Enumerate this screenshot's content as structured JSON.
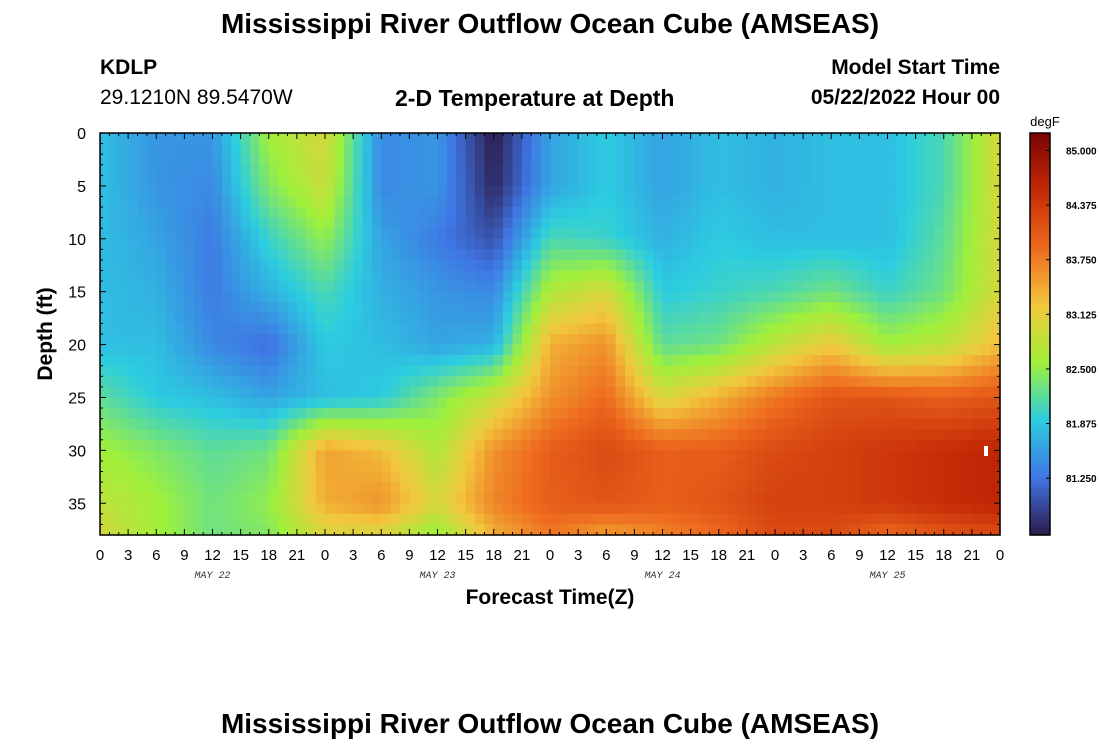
{
  "header": {
    "title": "Mississippi River Outflow Ocean Cube (AMSEAS)",
    "station": "KDLP",
    "coords": "29.1210N  89.5470W",
    "plot_title": "2-D Temperature at Depth",
    "start_label": "Model Start Time",
    "start_time": "05/22/2022 Hour 00"
  },
  "footer": {
    "title": "Mississippi River Outflow Ocean Cube (AMSEAS)"
  },
  "chart_data": {
    "type": "heatmap",
    "title": "2-D Temperature at Depth",
    "xlabel": "Forecast Time(Z)",
    "ylabel": "Depth (ft)",
    "colorbar_unit": "degF",
    "x_tick_labels": [
      "0",
      "3",
      "6",
      "9",
      "12",
      "15",
      "18",
      "21",
      "0",
      "3",
      "6",
      "9",
      "12",
      "15",
      "18",
      "21",
      "0",
      "3",
      "6",
      "9",
      "12",
      "15",
      "18",
      "21",
      "0",
      "3",
      "6",
      "9",
      "12",
      "15",
      "18",
      "21",
      "0"
    ],
    "date_labels": [
      "MAY 22",
      "MAY 23",
      "MAY 24",
      "MAY 25"
    ],
    "y_ticks": [
      0,
      5,
      10,
      15,
      20,
      25,
      30,
      35
    ],
    "ylim": [
      0,
      38
    ],
    "xlim_hours": [
      0,
      96
    ],
    "colorbar_ticks": [
      "85.000",
      "84.375",
      "83.750",
      "83.125",
      "82.500",
      "81.875",
      "81.250"
    ],
    "colorbar_range": [
      80.6,
      85.2
    ],
    "colors": {
      "low": "#2c1a4a",
      "blue": "#3f76e4",
      "cyan": "#2ccde0",
      "green": "#9ff03b",
      "yellow": "#f2c73d",
      "orange": "#ee6a1e",
      "red": "#c42906",
      "high": "#7a0403"
    },
    "grid_depths": [
      0,
      5,
      10,
      15,
      20,
      25,
      30,
      35,
      38
    ],
    "grid_hours": [
      0,
      6,
      12,
      18,
      24,
      30,
      36,
      42,
      48,
      54,
      60,
      66,
      72,
      78,
      84,
      90,
      96
    ],
    "values": [
      [
        81.8,
        81.5,
        81.5,
        82.6,
        83.0,
        81.4,
        81.5,
        80.6,
        81.6,
        81.9,
        81.6,
        81.8,
        81.7,
        81.8,
        81.8,
        82.1,
        83.0
      ],
      [
        81.8,
        81.5,
        81.4,
        82.4,
        82.9,
        81.4,
        81.5,
        80.7,
        81.6,
        81.9,
        81.6,
        81.8,
        81.7,
        81.8,
        81.8,
        82.1,
        83.0
      ],
      [
        81.8,
        81.6,
        81.3,
        82.0,
        82.5,
        81.6,
        81.3,
        81.0,
        82.1,
        82.0,
        81.7,
        81.9,
        81.8,
        81.8,
        81.8,
        82.2,
        83.0
      ],
      [
        81.8,
        81.7,
        81.3,
        81.7,
        82.1,
        81.7,
        81.5,
        81.4,
        82.7,
        83.0,
        81.9,
        82.0,
        82.1,
        82.3,
        82.0,
        82.3,
        83.0
      ],
      [
        81.8,
        81.8,
        81.4,
        81.2,
        81.9,
        81.8,
        81.6,
        81.7,
        83.4,
        83.6,
        82.2,
        82.3,
        82.8,
        83.2,
        82.6,
        82.8,
        83.3
      ],
      [
        82.2,
        81.9,
        81.8,
        81.6,
        81.8,
        81.9,
        82.4,
        82.9,
        83.6,
        83.9,
        83.0,
        83.4,
        83.8,
        84.1,
        84.1,
        84.0,
        84.1
      ],
      [
        82.6,
        82.4,
        82.2,
        82.3,
        83.5,
        83.3,
        82.7,
        83.6,
        84.0,
        84.2,
        84.0,
        84.0,
        84.2,
        84.3,
        84.4,
        84.5,
        84.6
      ],
      [
        82.8,
        82.6,
        82.3,
        82.5,
        83.4,
        83.6,
        83.0,
        83.7,
        84.0,
        84.1,
        84.0,
        84.1,
        84.3,
        84.3,
        84.4,
        84.5,
        84.6
      ],
      [
        83.0,
        82.6,
        82.3,
        82.4,
        83.0,
        83.0,
        82.5,
        83.4,
        83.8,
        83.5,
        83.7,
        83.9,
        84.2,
        84.2,
        83.9,
        84.1,
        84.2
      ]
    ]
  }
}
